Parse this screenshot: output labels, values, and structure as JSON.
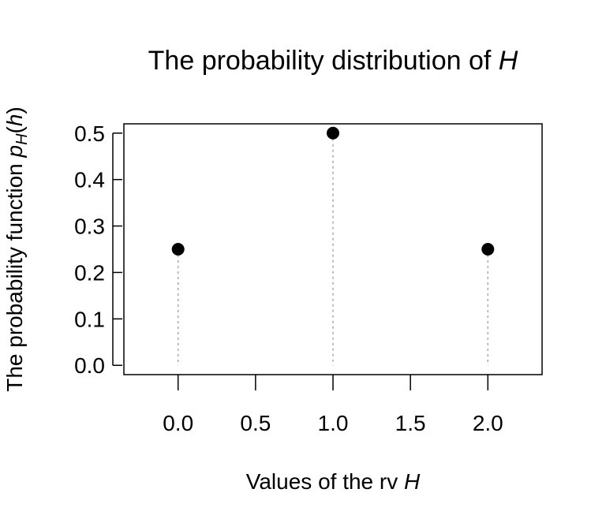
{
  "chart_data": {
    "type": "scatter",
    "title": "The probability distribution of H",
    "xlabel": "Values of the rv H",
    "ylabel": "The probability function p_H(h)",
    "x": [
      0,
      1,
      2
    ],
    "values": [
      0.25,
      0.5,
      0.25
    ],
    "xlim": [
      -0.35,
      2.35
    ],
    "ylim": [
      -0.02,
      0.52
    ],
    "xticks": [
      0,
      0.5,
      1,
      1.5,
      2
    ],
    "xtick_labels": [
      "0.0",
      "0.5",
      "1.0",
      "1.5",
      "2.0"
    ],
    "yticks": [
      0,
      0.1,
      0.2,
      0.3,
      0.4,
      0.5
    ],
    "ytick_labels": [
      "0.0",
      "0.1",
      "0.2",
      "0.3",
      "0.4",
      "0.5"
    ],
    "grid": false,
    "drop_lines": true,
    "colors": {
      "points": "#000000",
      "drop_lines": "#aaaaaa",
      "axes": "#000000"
    }
  }
}
